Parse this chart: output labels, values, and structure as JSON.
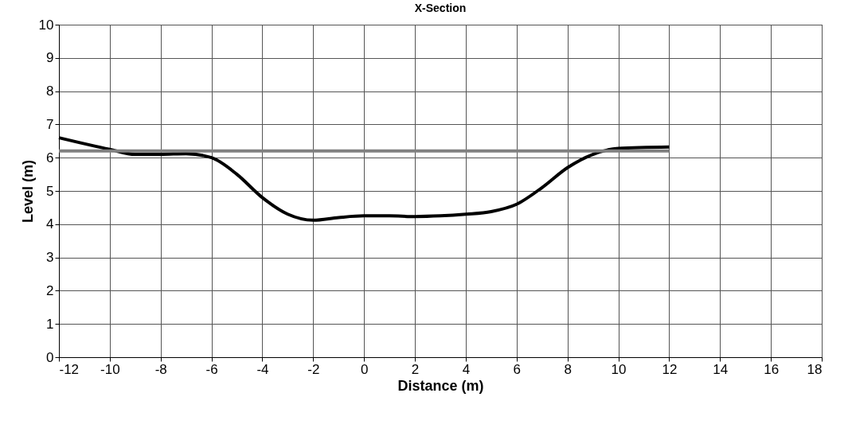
{
  "chart_data": {
    "type": "line",
    "title": "X-Section",
    "xlabel": "Distance (m)",
    "ylabel": "Level (m)",
    "xlim": [
      -12,
      18
    ],
    "xticks": [
      -12,
      -10,
      -8,
      -6,
      -4,
      -2,
      0,
      2,
      4,
      6,
      8,
      10,
      12,
      14,
      16,
      18
    ],
    "ylim": [
      0,
      10
    ],
    "yticks": [
      0,
      1,
      2,
      3,
      4,
      5,
      6,
      7,
      8,
      9,
      10
    ],
    "grid": true,
    "marker": "none",
    "line_style": "solid",
    "series": [
      {
        "color": "#000000",
        "x": [
          -12,
          -10,
          -9,
          -8,
          -7,
          -6,
          -5,
          -4,
          -3,
          -2,
          -1,
          0,
          1,
          2,
          3,
          4,
          5,
          6,
          7,
          8,
          9,
          10,
          12
        ],
        "values": [
          6.6,
          6.25,
          6.1,
          6.1,
          6.12,
          6.0,
          5.5,
          4.8,
          4.3,
          4.12,
          4.2,
          4.25,
          4.25,
          4.23,
          4.25,
          4.3,
          4.38,
          4.6,
          5.1,
          5.7,
          6.1,
          6.28,
          6.32
        ]
      },
      {
        "color": "#808080",
        "x": [
          -12,
          12
        ],
        "values": [
          6.2,
          6.2
        ]
      }
    ]
  }
}
